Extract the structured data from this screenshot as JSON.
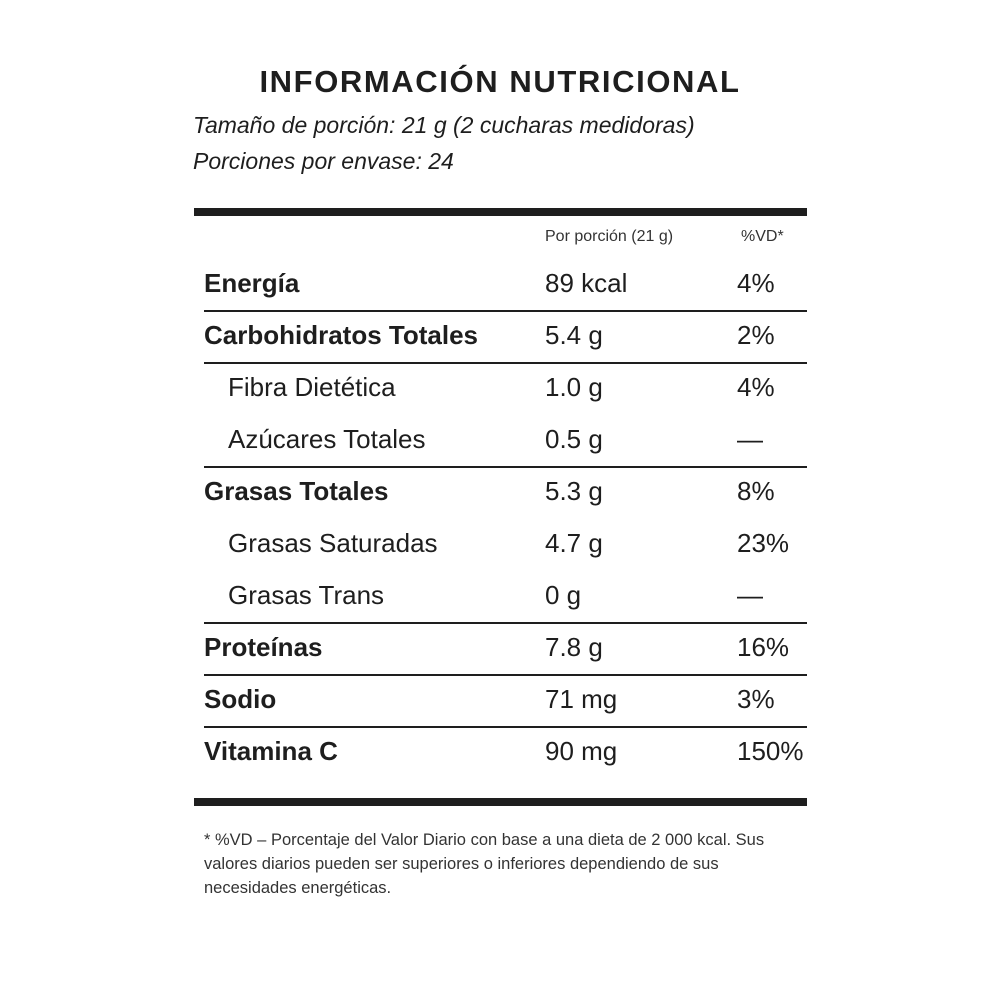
{
  "title": "INFORMACIÓN NUTRICIONAL",
  "serving_size": "Tamaño de porción: 21 g (2 cucharas medidoras)",
  "servings_per_container": "Porciones por envase: 24",
  "table": {
    "header": [
      "Por porción (21 g)",
      "%VD*"
    ],
    "rows": [
      [
        "Energía",
        "89 kcal",
        "4%"
      ],
      [
        "Carbohidratos Totales",
        "5.4 g",
        "2%"
      ],
      [
        "Fibra Dietética",
        "1.0 g",
        "4%"
      ],
      [
        "Azúcares Totales",
        "0.5 g",
        "—"
      ],
      [
        "Grasas Totales",
        "5.3 g",
        "8%"
      ],
      [
        "Grasas Saturadas",
        "4.7 g",
        "23%"
      ],
      [
        "Grasas Trans",
        "0 g",
        "—"
      ],
      [
        "Proteínas",
        "7.8 g",
        "16%"
      ],
      [
        "Sodio",
        "71 mg",
        "3%"
      ],
      [
        "Vitamina C",
        "90 mg",
        "150%"
      ]
    ]
  },
  "footnote": "* %VD – Porcentaje del Valor Diario con base a una dieta de 2 000 kcal. Sus valores diarios pueden ser superiores o inferiores dependiendo de sus necesidades energéticas."
}
